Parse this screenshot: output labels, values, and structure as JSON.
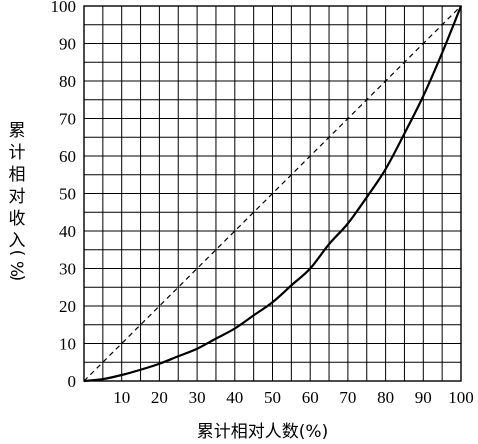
{
  "chart_data": {
    "type": "line",
    "title": "",
    "xlabel": "累计相对人数(%)",
    "ylabel": "累计相对收入(%)",
    "xlim": [
      0,
      100
    ],
    "ylim": [
      0,
      100
    ],
    "x_ticks": [
      "10",
      "20",
      "30",
      "40",
      "50",
      "60",
      "70",
      "80",
      "90",
      "100"
    ],
    "y_ticks": [
      "0",
      "10",
      "20",
      "30",
      "40",
      "50",
      "60",
      "70",
      "80",
      "90",
      "100"
    ],
    "grid": "on",
    "grid_step": 5,
    "series": [
      {
        "style": "solid",
        "x": [
          0,
          5,
          10,
          15,
          20,
          25,
          30,
          35,
          40,
          45,
          50,
          55,
          60,
          65,
          70,
          75,
          80,
          85,
          90,
          95,
          100
        ],
        "y": [
          0,
          0.5,
          1.6,
          3,
          4.6,
          6.6,
          8.6,
          11.3,
          14,
          17.5,
          21,
          25.5,
          30,
          36.5,
          42,
          49,
          56.5,
          66,
          76,
          87.5,
          100
        ]
      },
      {
        "style": "dashed",
        "x": [
          0,
          100
        ],
        "y": [
          0,
          100
        ]
      }
    ]
  }
}
